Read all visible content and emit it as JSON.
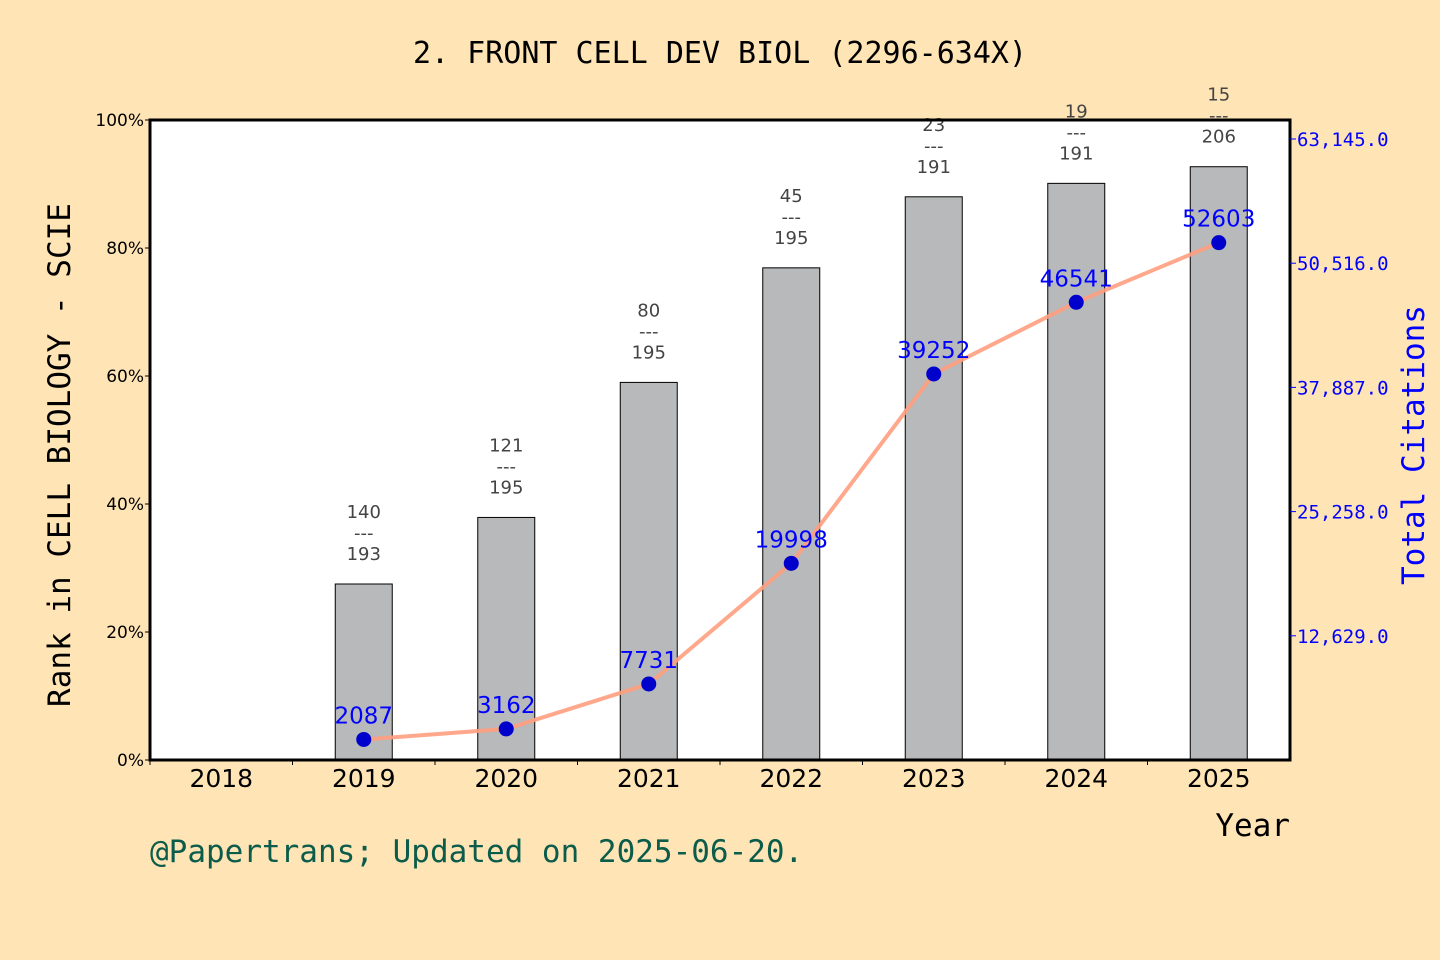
{
  "title": "2. FRONT CELL DEV BIOL (2296-634X)",
  "footer": "@Papertrans; Updated on 2025-06-20.",
  "colors": {
    "background": "#ffe4b5",
    "bar": "#b8b9ba",
    "line": "#ff9f7f",
    "point": "#0000cd",
    "citation_text": "#0000ff",
    "right_axis": "#0000ff"
  },
  "chart_data": {
    "type": "bar+line",
    "categories": [
      "2018",
      "2019",
      "2020",
      "2021",
      "2022",
      "2023",
      "2024",
      "2025"
    ],
    "xlabel": "Year",
    "ylabel": "Rank in CELL BIOLOGY - SCIE",
    "y2label": "Total Citations",
    "ylim": [
      0,
      100
    ],
    "yticks": [
      "0%",
      "20%",
      "40%",
      "60%",
      "80%",
      "100%"
    ],
    "y2ticks": [
      "12,629.0",
      "25,258.0",
      "37,887.0",
      "50,516.0",
      "63,145.0"
    ],
    "y2tick_values": [
      12629,
      25258,
      37887,
      50516,
      63145
    ],
    "grid": false,
    "rank_series": [
      {
        "year": "2019",
        "rank": 140,
        "total": 193,
        "percentile": 27.5
      },
      {
        "year": "2020",
        "rank": 121,
        "total": 195,
        "percentile": 37.9
      },
      {
        "year": "2021",
        "rank": 80,
        "total": 195,
        "percentile": 59.0
      },
      {
        "year": "2022",
        "rank": 45,
        "total": 195,
        "percentile": 76.9
      },
      {
        "year": "2023",
        "rank": 23,
        "total": 191,
        "percentile": 88.0
      },
      {
        "year": "2024",
        "rank": 19,
        "total": 191,
        "percentile": 90.1
      },
      {
        "year": "2025",
        "rank": 15,
        "total": 206,
        "percentile": 92.7
      }
    ],
    "citations_series": [
      {
        "year": "2019",
        "value": 2087
      },
      {
        "year": "2020",
        "value": 3162
      },
      {
        "year": "2021",
        "value": 7731
      },
      {
        "year": "2022",
        "value": 19998
      },
      {
        "year": "2023",
        "value": 39252
      },
      {
        "year": "2024",
        "value": 46541
      },
      {
        "year": "2025",
        "value": 52603
      }
    ]
  }
}
